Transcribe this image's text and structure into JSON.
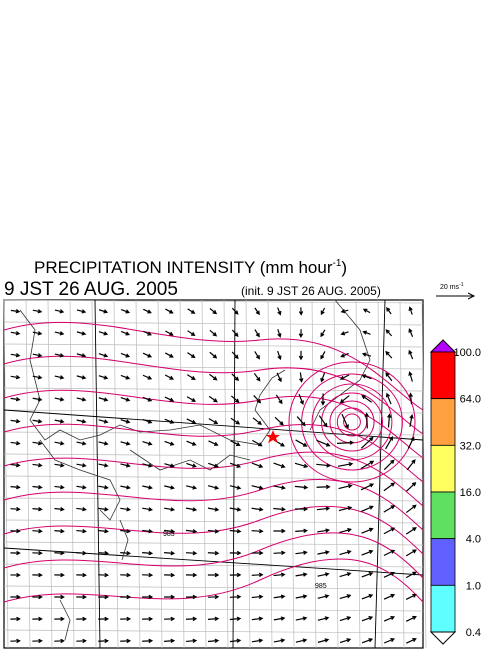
{
  "header": {
    "title": "PRECIPITATION INTENSITY (mm hour",
    "title_sup": "-1",
    "title_end": ")",
    "time": "9 JST 26 AUG. 2005",
    "init": "(init. 9 JST 26 AUG. 2005)",
    "vector_scale": "20 ms",
    "vector_scale_sup": "-1"
  },
  "map": {
    "isobar_labels": [
      "983",
      "985"
    ]
  },
  "colorbar": {
    "top_color": "#b400ff",
    "bottom_color": "#ffffff",
    "bins": [
      {
        "color": "#ff0000"
      },
      {
        "color": "#ffa040"
      },
      {
        "color": "#ffff60"
      },
      {
        "color": "#60e060"
      },
      {
        "color": "#6060ff"
      },
      {
        "color": "#60ffff"
      }
    ],
    "labels": [
      "100.0",
      "64.0",
      "32.0",
      "16.0",
      "4.0",
      "1.0",
      "0.4"
    ]
  }
}
